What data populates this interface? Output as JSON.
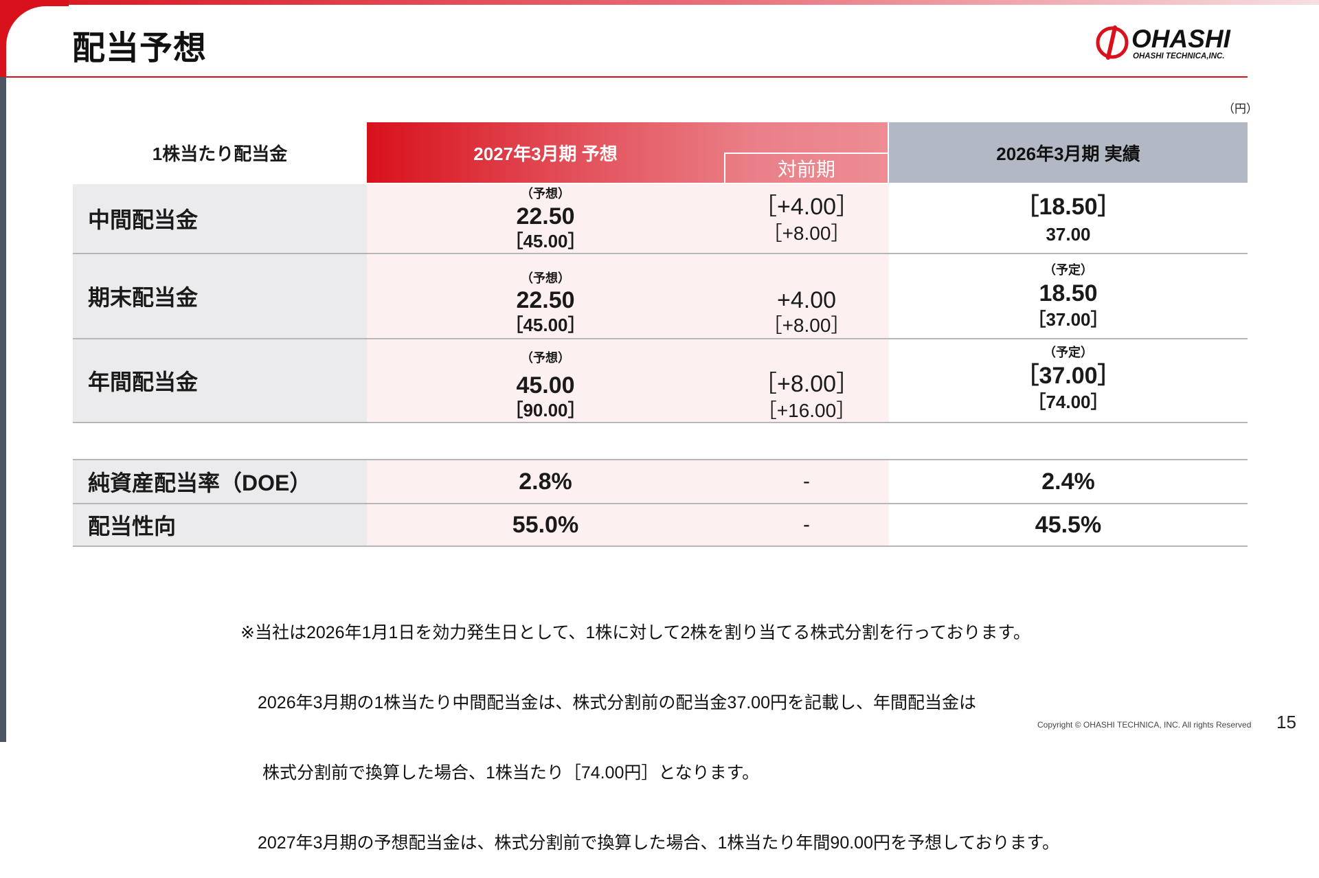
{
  "header": {
    "title": "配当予想"
  },
  "logo": {
    "text": "OHASHI",
    "subtext": "OHASHI TECHNICA,INC."
  },
  "unit": "（円）",
  "table": {
    "corner_label": "1株当たり配当金",
    "forecast_header": "2027年3月期 予想",
    "diff_header": "対前期",
    "actual_header": "2026年3月期 実績",
    "rows": [
      {
        "label": "中間配当金",
        "forecast_note": "（予想）",
        "forecast_value": "22.50",
        "forecast_sub": "［45.00］",
        "diff_value": "［+4.00］",
        "diff_sub": "［+8.00］",
        "actual_note": "",
        "actual_value": "［18.50］",
        "actual_sub": "37.00"
      },
      {
        "label": "期末配当金",
        "forecast_note": "（予想）",
        "forecast_value": "22.50",
        "forecast_sub": "［45.00］",
        "diff_value": "+4.00",
        "diff_sub": "［+8.00］",
        "actual_note": "（予定）",
        "actual_value": "18.50",
        "actual_sub": "［37.00］"
      },
      {
        "label": "年間配当金",
        "forecast_note": "（予想）",
        "forecast_value": "45.00",
        "forecast_sub": "［90.00］",
        "diff_value": "［+8.00］",
        "diff_sub": "［+16.00］",
        "actual_note": "（予定）",
        "actual_value": "［37.00］",
        "actual_sub": "［74.00］"
      }
    ],
    "ratios": [
      {
        "label": "純資産配当率（DOE）",
        "forecast": "2.8%",
        "diff": "-",
        "actual": "2.4%"
      },
      {
        "label": "配当性向",
        "forecast": "55.0%",
        "diff": "-",
        "actual": "45.5%"
      }
    ]
  },
  "notes": [
    "※当社は2026年1月1日を効力発生日として、1株に対して2株を割り当てる株式分割を行っております。",
    "　2026年3月期の1株当たり中間配当金は、株式分割前の配当金37.00円を記載し、年間配当金は",
    "　 株式分割前で換算した場合、1株当たり［74.00円］となります。",
    "　2027年3月期の予想配当金は、株式分割前で換算した場合、1株当たり年間90.00円を予想しております。"
  ],
  "footer": {
    "copyright": "Copyright © OHASHI TECHNICA, INC. All rights Reserved",
    "page_number": "15"
  },
  "colors": {
    "accent": "#d8111c",
    "actual_header": "#b2b8c4",
    "forecast_bg": "#fcf0f1",
    "label_bg": "#ebebed"
  }
}
